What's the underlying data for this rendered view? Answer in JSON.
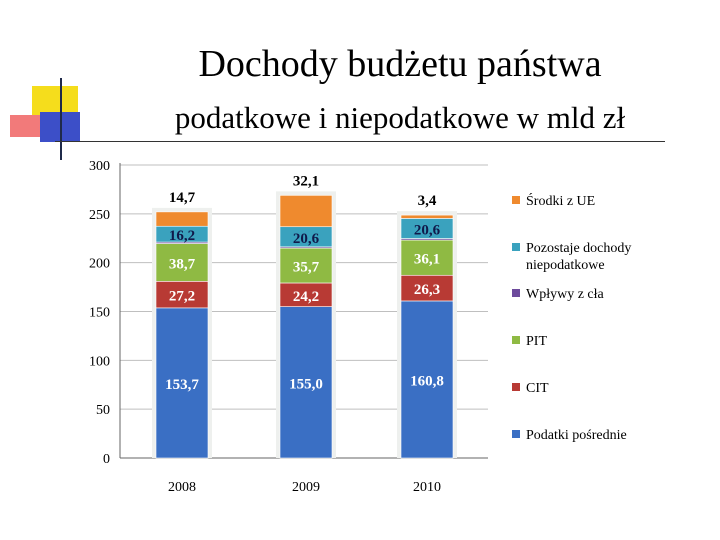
{
  "slide": {
    "title": "Dochody budżetu państwa",
    "subtitle": "podatkowe i niepodatkowe w mld zł"
  },
  "colors": {
    "deco_yellow": "#f5dd1c",
    "deco_red": "#f27a7a",
    "deco_blue": "#3c4fc8"
  },
  "chart_data": {
    "type": "bar",
    "stacked": true,
    "categories": [
      "2008",
      "2009",
      "2010"
    ],
    "ylim": [
      0,
      300
    ],
    "yticks": [
      0,
      50,
      100,
      150,
      200,
      250,
      300
    ],
    "series": [
      {
        "name": "Podatki pośrednie",
        "color": "#3a6fc4",
        "values": [
          153.7,
          155.0,
          160.8
        ],
        "labels": [
          "153,7",
          "155,0",
          "160,8"
        ]
      },
      {
        "name": "CIT",
        "color": "#b83a34",
        "values": [
          27.2,
          24.2,
          26.3
        ],
        "labels": [
          "27,2",
          "24,2",
          "26,3"
        ]
      },
      {
        "name": "PIT",
        "color": "#8fba43",
        "values": [
          38.7,
          35.7,
          36.1
        ],
        "labels": [
          "38,7",
          "35,7",
          "36,1"
        ]
      },
      {
        "name": "Wpływy z cła",
        "color": "#6d4a9c",
        "values": [
          1.5,
          1.3,
          1.5
        ],
        "labels": [
          "",
          "",
          ""
        ]
      },
      {
        "name": "Pozostaje dochody niepodatkowe",
        "color": "#3aa2be",
        "values": [
          16.2,
          20.6,
          20.6
        ],
        "labels": [
          "16,2",
          "20,6",
          "20,6"
        ]
      },
      {
        "name": "Środki z UE",
        "color": "#ef8a2e",
        "values": [
          14.7,
          32.1,
          3.4
        ],
        "labels": [
          "14,7",
          "32,1",
          "3,4"
        ]
      }
    ],
    "legend": {
      "position": "right",
      "entries": [
        {
          "lines": [
            "Środki z UE"
          ],
          "color": "#ef8a2e"
        },
        {
          "lines": [
            "Pozostaje dochody",
            "niepodatkowe"
          ],
          "color": "#3aa2be"
        },
        {
          "lines": [
            "Wpływy z cła"
          ],
          "color": "#6d4a9c"
        },
        {
          "lines": [
            "PIT"
          ],
          "color": "#8fba43"
        },
        {
          "lines": [
            "CIT"
          ],
          "color": "#b83a34"
        },
        {
          "lines": [
            "Podatki pośrednie"
          ],
          "color": "#3a6fc4"
        }
      ]
    }
  }
}
